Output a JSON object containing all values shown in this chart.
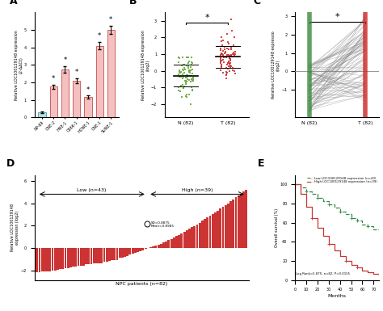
{
  "panel_A": {
    "categories": [
      "NP-69",
      "CNE-2",
      "HNE-1",
      "C666-1",
      "HONE-1",
      "CNE-1",
      "SUNE-1"
    ],
    "values": [
      0.28,
      1.75,
      2.75,
      2.1,
      1.15,
      4.1,
      5.0
    ],
    "errors": [
      0.04,
      0.12,
      0.18,
      0.13,
      0.09,
      0.22,
      0.25
    ],
    "bar_color_normal": "#b2e0e0",
    "bar_color_tumor": "#f5c0c0",
    "edge_color_normal": "#5aaaaa",
    "edge_color_tumor": "#d06060",
    "ylabel": "Relative LOC100129148 expression\n(2-ΔΔCt)",
    "ylim": [
      0,
      6.0
    ],
    "yticks": [
      0,
      1,
      2,
      3,
      4,
      5
    ]
  },
  "panel_B": {
    "N_mean": -0.2,
    "N_std": 0.7,
    "T_mean": 0.8,
    "T_std": 0.65,
    "N_color": "#6aaa40",
    "T_color": "#cc3333",
    "ylabel": "Relative LOC100129148 expression\n(log2)",
    "ylim": [
      -2.8,
      3.5
    ],
    "yticks": [
      -2,
      -1,
      0,
      1,
      2,
      3
    ],
    "n_points": 82
  },
  "panel_C": {
    "N_color": "#3a8a3a",
    "T_color": "#cc2222",
    "line_color": "#aaaaaa",
    "ylabel": "Relative LOC100129148 expressio\n(log2)",
    "ylim": [
      -2.5,
      3.2
    ],
    "yticks": [
      -1,
      0,
      1,
      2,
      3
    ],
    "n_pairs": 82,
    "N_range": [
      -2.2,
      0.4
    ],
    "T_range": [
      -1.8,
      3.0
    ]
  },
  "panel_D": {
    "n_patients": 82,
    "n_low": 43,
    "n_high": 39,
    "bar_color": "#cc3333",
    "ylabel": "Relative LOC100129148\nexpression (log2)",
    "xlabel": "NPC patients (n=82)",
    "annotation": "SD=0.8875\nMean=0.8985",
    "low_range": [
      -2.2,
      -0.05
    ],
    "high_range": [
      0.05,
      5.2
    ],
    "ylim": [
      -2.8,
      6.5
    ],
    "yticks": [
      -2,
      0,
      2,
      4,
      6
    ]
  },
  "panel_E": {
    "months_low": [
      0,
      5,
      10,
      15,
      20,
      25,
      30,
      35,
      40,
      45,
      50,
      55,
      60,
      65,
      70,
      75
    ],
    "surv_low": [
      100,
      97,
      93,
      90,
      86,
      83,
      79,
      76,
      72,
      69,
      65,
      62,
      58,
      56,
      53,
      52
    ],
    "months_high": [
      0,
      5,
      10,
      15,
      20,
      25,
      30,
      35,
      40,
      45,
      50,
      55,
      60,
      65,
      70,
      75
    ],
    "surv_high": [
      100,
      90,
      77,
      65,
      55,
      46,
      38,
      31,
      25,
      20,
      16,
      13,
      10,
      8,
      6,
      5
    ],
    "low_color": "#2e8b44",
    "high_color": "#cc3333",
    "low_label": "-- Low LOC100129148 expression (n=43)",
    "high_label": "-- High LOC100129148 expression (n=39)",
    "xlabel": "Months",
    "ylabel": "Overall survival (%)",
    "log_rank_text": "Log Rank=5.875; n=82; P=0.0155",
    "ylim": [
      0,
      110
    ],
    "xlim": [
      0,
      75
    ],
    "xticks": [
      0,
      10,
      20,
      30,
      40,
      50,
      60,
      70
    ],
    "yticks": [
      0,
      20,
      40,
      60,
      80,
      100
    ]
  },
  "background_color": "#ffffff"
}
